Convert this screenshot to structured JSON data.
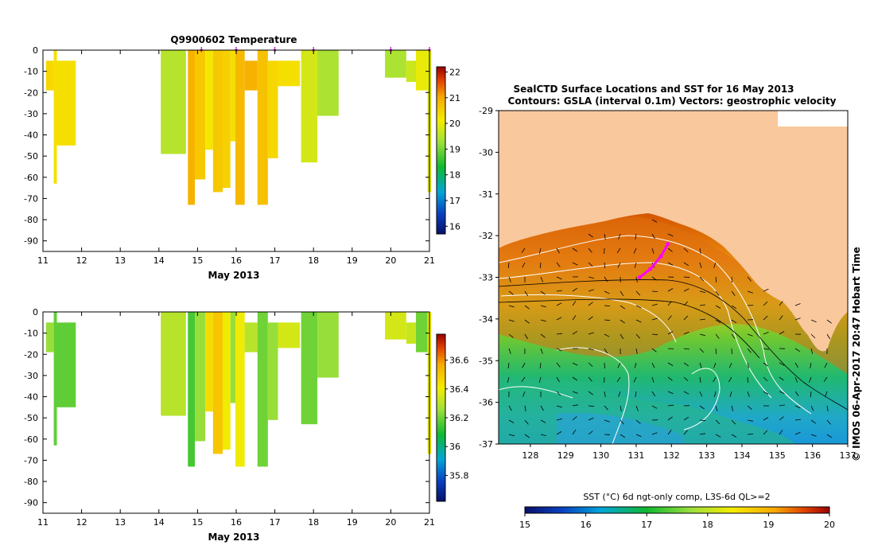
{
  "chart_data": [
    {
      "id": "temperature_profile",
      "type": "heatmap",
      "title": "Q9900602  Temperature",
      "xlabel": "May 2013",
      "x_ticks": [
        "11",
        "12",
        "13",
        "14",
        "15",
        "16",
        "17",
        "18",
        "19",
        "20",
        "21"
      ],
      "xlim": [
        11,
        21
      ],
      "ylim": [
        -95,
        0
      ],
      "y_ticks": [
        "0",
        "-10",
        "-20",
        "-30",
        "-40",
        "-50",
        "-60",
        "-70",
        "-80",
        "-90"
      ],
      "colorbar": {
        "min": 15.7,
        "max": 22.2,
        "ticks": [
          "22",
          "21",
          "20",
          "19",
          "18",
          "17",
          "16"
        ]
      },
      "profiles": [
        {
          "x0": 11.08,
          "x1": 11.28,
          "segments": [
            [
              5,
              19,
              20.4
            ]
          ]
        },
        {
          "x0": 11.28,
          "x1": 11.36,
          "segments": [
            [
              0,
              63,
              20.3
            ]
          ]
        },
        {
          "x0": 11.36,
          "x1": 11.85,
          "segments": [
            [
              5,
              45,
              20.3
            ]
          ]
        },
        {
          "x0": 14.05,
          "x1": 14.7,
          "segments": [
            [
              0,
              49,
              19.5
            ]
          ]
        },
        {
          "x0": 14.75,
          "x1": 14.93,
          "segments": [
            [
              0,
              73,
              20.9
            ]
          ]
        },
        {
          "x0": 14.93,
          "x1": 15.2,
          "segments": [
            [
              0,
              61,
              20.6
            ]
          ]
        },
        {
          "x0": 15.2,
          "x1": 15.4,
          "segments": [
            [
              0,
              47,
              20.2
            ]
          ]
        },
        {
          "x0": 15.4,
          "x1": 15.65,
          "segments": [
            [
              0,
              67,
              20.6
            ]
          ]
        },
        {
          "x0": 15.65,
          "x1": 15.85,
          "segments": [
            [
              0,
              65,
              20.5
            ]
          ]
        },
        {
          "x0": 15.85,
          "x1": 15.98,
          "segments": [
            [
              0,
              43,
              20.3
            ]
          ]
        },
        {
          "x0": 15.98,
          "x1": 16.22,
          "segments": [
            [
              0,
              73,
              20.8
            ]
          ]
        },
        {
          "x0": 16.22,
          "x1": 16.55,
          "segments": [
            [
              5,
              19,
              20.9
            ]
          ]
        },
        {
          "x0": 16.55,
          "x1": 16.82,
          "segments": [
            [
              0,
              73,
              20.7
            ]
          ]
        },
        {
          "x0": 16.82,
          "x1": 17.08,
          "segments": [
            [
              5,
              51,
              20.4
            ]
          ]
        },
        {
          "x0": 17.08,
          "x1": 17.65,
          "segments": [
            [
              5,
              17,
              20.3
            ]
          ]
        },
        {
          "x0": 17.68,
          "x1": 18.1,
          "segments": [
            [
              0,
              53,
              19.8
            ]
          ]
        },
        {
          "x0": 18.1,
          "x1": 18.65,
          "segments": [
            [
              0,
              31,
              19.4
            ]
          ]
        },
        {
          "x0": 19.85,
          "x1": 20.4,
          "segments": [
            [
              0,
              13,
              19.4
            ]
          ]
        },
        {
          "x0": 20.4,
          "x1": 20.65,
          "segments": [
            [
              5,
              15,
              19.7
            ]
          ]
        },
        {
          "x0": 20.65,
          "x1": 20.95,
          "segments": [
            [
              0,
              19,
              20.0
            ]
          ]
        },
        {
          "x0": 20.95,
          "x1": 21.05,
          "segments": [
            [
              0,
              67,
              19.9
            ]
          ]
        }
      ],
      "surface_markers": [
        15.1,
        16.0,
        17.0,
        18.0,
        20.0,
        21.0
      ]
    },
    {
      "id": "salinity_profile",
      "type": "heatmap",
      "title": "",
      "xlabel": "May 2013",
      "x_ticks": [
        "11",
        "12",
        "13",
        "14",
        "15",
        "16",
        "17",
        "18",
        "19",
        "20",
        "21"
      ],
      "xlim": [
        11,
        21
      ],
      "ylim": [
        -95,
        0
      ],
      "y_ticks": [
        "0",
        "-10",
        "-20",
        "-30",
        "-40",
        "-50",
        "-60",
        "-70",
        "-80",
        "-90"
      ],
      "colorbar": {
        "min": 35.62,
        "max": 36.78,
        "ticks": [
          "36.6",
          "36.4",
          "36.2",
          "36",
          "35.8"
        ]
      },
      "profiles": [
        {
          "x0": 11.08,
          "x1": 11.28,
          "segments": [
            [
              5,
              19,
              36.25
            ]
          ]
        },
        {
          "x0": 11.28,
          "x1": 11.36,
          "segments": [
            [
              0,
              63,
              36.18
            ]
          ]
        },
        {
          "x0": 11.36,
          "x1": 11.85,
          "segments": [
            [
              5,
              45,
              36.18
            ]
          ]
        },
        {
          "x0": 14.05,
          "x1": 14.7,
          "segments": [
            [
              0,
              49,
              36.3
            ]
          ]
        },
        {
          "x0": 14.75,
          "x1": 14.93,
          "segments": [
            [
              0,
              73,
              36.15
            ]
          ]
        },
        {
          "x0": 14.93,
          "x1": 15.2,
          "segments": [
            [
              0,
              61,
              36.25
            ]
          ]
        },
        {
          "x0": 15.2,
          "x1": 15.4,
          "segments": [
            [
              0,
              47,
              36.45
            ]
          ]
        },
        {
          "x0": 15.4,
          "x1": 15.65,
          "segments": [
            [
              0,
              67,
              36.5
            ]
          ]
        },
        {
          "x0": 15.65,
          "x1": 15.85,
          "segments": [
            [
              0,
              65,
              36.4
            ]
          ]
        },
        {
          "x0": 15.85,
          "x1": 15.98,
          "segments": [
            [
              0,
              43,
              36.25
            ]
          ]
        },
        {
          "x0": 15.98,
          "x1": 16.22,
          "segments": [
            [
              0,
              73,
              36.4
            ]
          ]
        },
        {
          "x0": 16.22,
          "x1": 16.55,
          "segments": [
            [
              5,
              19,
              36.3
            ]
          ]
        },
        {
          "x0": 16.55,
          "x1": 16.82,
          "segments": [
            [
              0,
              73,
              36.2
            ]
          ]
        },
        {
          "x0": 16.82,
          "x1": 17.08,
          "segments": [
            [
              5,
              51,
              36.25
            ]
          ]
        },
        {
          "x0": 17.08,
          "x1": 17.65,
          "segments": [
            [
              5,
              17,
              36.35
            ]
          ]
        },
        {
          "x0": 17.68,
          "x1": 18.1,
          "segments": [
            [
              0,
              53,
              36.2
            ]
          ]
        },
        {
          "x0": 18.1,
          "x1": 18.65,
          "segments": [
            [
              0,
              31,
              36.25
            ]
          ]
        },
        {
          "x0": 19.85,
          "x1": 20.4,
          "segments": [
            [
              0,
              13,
              36.35
            ]
          ]
        },
        {
          "x0": 20.4,
          "x1": 20.65,
          "segments": [
            [
              5,
              15,
              36.33
            ]
          ]
        },
        {
          "x0": 20.65,
          "x1": 20.95,
          "segments": [
            [
              0,
              19,
              36.2
            ]
          ]
        },
        {
          "x0": 20.95,
          "x1": 21.05,
          "segments": [
            [
              0,
              67,
              36.4
            ]
          ]
        }
      ]
    },
    {
      "id": "sst_map",
      "type": "heatmap",
      "title": "SealCTD Surface Locations and SST for 16 May 2013",
      "subtitle": "Contours: GSLA (interval 0.1m) Vectors: geostrophic velocity",
      "x_ticks": [
        "128",
        "129",
        "130",
        "131",
        "132",
        "133",
        "134",
        "135",
        "136",
        "137"
      ],
      "y_ticks": [
        "-29",
        "-30",
        "-31",
        "-32",
        "-33",
        "-34",
        "-35",
        "-36",
        "-37"
      ],
      "xlim": [
        127.1,
        137.0
      ],
      "ylim": [
        -37,
        -29
      ],
      "colorbar": {
        "label": "SST (°C) 6d ngt-only comp, L3S-6d QL>=2",
        "min": 15,
        "max": 20,
        "ticks": [
          "15",
          "16",
          "17",
          "18",
          "19",
          "20"
        ]
      },
      "credit": "© IMOS 06-Apr-2017 20:47 Hobart Time",
      "ctd_track": [
        [
          131.1,
          -33.0
        ],
        [
          131.4,
          -32.8
        ],
        [
          131.7,
          -32.5
        ],
        [
          131.9,
          -32.2
        ]
      ]
    }
  ]
}
